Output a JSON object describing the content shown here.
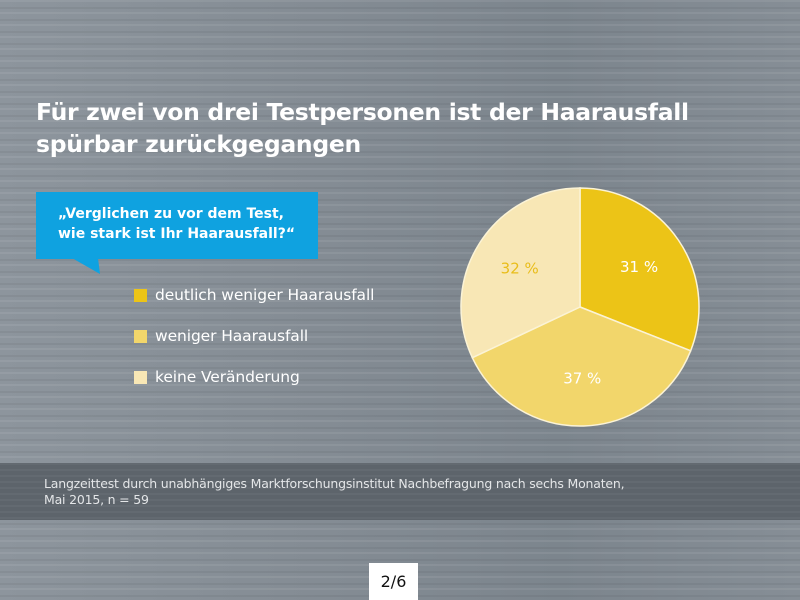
{
  "title": "Für zwei von drei Testpersonen ist der Haarausfall spürbar zurückgegangen",
  "question": {
    "line1": "„Verglichen zu vor dem Test,",
    "line2": "wie stark ist Ihr Haarausfall?“",
    "color": "#0fa2e0"
  },
  "footer": {
    "line1": "Langzeittest durch unabhängiges Marktforschungsinstitut Nachbefragung  nach sechs Monaten,",
    "line2": "Mai 2015, n = 59"
  },
  "page_indicator": "2/6",
  "chart_data": {
    "type": "pie",
    "title": "Für zwei von drei Testpersonen ist der Haarausfall spürbar zurückgegangen",
    "subtitle": "„Verglichen zu vor dem Test, wie stark ist Ihr Haarausfall?“",
    "start_angle_deg": 0,
    "direction": "clockwise",
    "legend_position": "left",
    "slices": [
      {
        "label": "deutlich weniger Haarausfall",
        "value": 31,
        "display": "31 %",
        "color": "#ecc417",
        "label_color": "#ffffff"
      },
      {
        "label": "weniger Haarausfall",
        "value": 37,
        "display": "37 %",
        "color": "#f2d66b",
        "label_color": "#ffffff"
      },
      {
        "label": "keine Veränderung",
        "value": 32,
        "display": "32 %",
        "color": "#f8e7b5",
        "label_color": "#e9bd1a"
      }
    ],
    "n": 59
  }
}
